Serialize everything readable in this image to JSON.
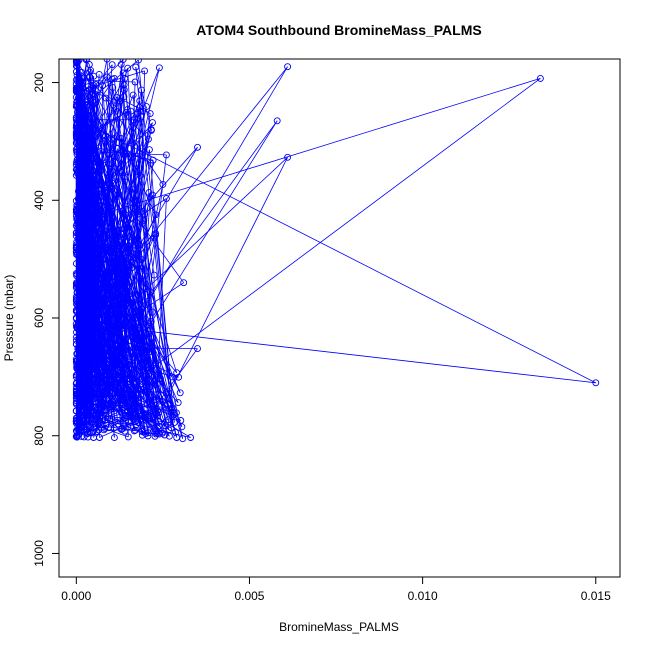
{
  "chart_data": {
    "type": "line",
    "title": "ATOM4 Southbound BromineMass_PALMS",
    "xlabel": "BromineMass_PALMS",
    "ylabel": "Pressure (mbar)",
    "xlim": [
      -0.0005,
      0.0157
    ],
    "ylim": [
      1040,
      160
    ],
    "y_reversed": true,
    "x_ticks": [
      "0.000",
      "0.005",
      "0.010",
      "0.015"
    ],
    "x_tick_values": [
      0,
      0.005,
      0.01,
      0.015
    ],
    "y_ticks": [
      "200",
      "400",
      "600",
      "800",
      "1000"
    ],
    "y_tick_values": [
      200,
      400,
      600,
      800,
      1000
    ],
    "series_color": "#0000ff",
    "marker": "open-circle",
    "grid": false,
    "legend": "none",
    "notable_points": [
      {
        "x": 0.0134,
        "y": 193
      },
      {
        "x": 0.0061,
        "y": 173
      },
      {
        "x": 0.0058,
        "y": 265
      },
      {
        "x": 0.0061,
        "y": 327
      },
      {
        "x": 0.0035,
        "y": 310
      },
      {
        "x": 0.0026,
        "y": 323
      },
      {
        "x": 0.0026,
        "y": 397
      },
      {
        "x": 0.0024,
        "y": 175
      },
      {
        "x": 0.0022,
        "y": 268
      },
      {
        "x": 0.0021,
        "y": 387
      },
      {
        "x": 0.0019,
        "y": 440
      },
      {
        "x": 0.0017,
        "y": 415
      },
      {
        "x": 0.0014,
        "y": 193
      },
      {
        "x": 0.0011,
        "y": 295
      },
      {
        "x": 0.0031,
        "y": 540
      },
      {
        "x": 0.0022,
        "y": 590
      },
      {
        "x": 0.0035,
        "y": 652
      },
      {
        "x": 0.015,
        "y": 710
      },
      {
        "x": 0.002,
        "y": 520
      },
      {
        "x": 0.0016,
        "y": 505
      },
      {
        "x": 0.0029,
        "y": 693
      },
      {
        "x": 0.003,
        "y": 727
      },
      {
        "x": 0.0028,
        "y": 760
      },
      {
        "x": 0.0033,
        "y": 803
      },
      {
        "x": 0.0029,
        "y": 803
      },
      {
        "x": 0.0024,
        "y": 797
      },
      {
        "x": 0.0019,
        "y": 793
      },
      {
        "x": 0.0015,
        "y": 802
      },
      {
        "x": 0.0005,
        "y": 803
      },
      {
        "x": 0.0023,
        "y": 753
      },
      {
        "x": 0.0025,
        "y": 742
      },
      {
        "x": 0.0018,
        "y": 778
      },
      {
        "x": 0.0012,
        "y": 780
      },
      {
        "x": 0.0008,
        "y": 790
      },
      {
        "x": 0.0003,
        "y": 780
      },
      {
        "x": 0.0,
        "y": 770
      },
      {
        "x": 0.0025,
        "y": 373
      },
      {
        "x": 0.0014,
        "y": 360
      }
    ],
    "point_count_estimate": 900
  }
}
